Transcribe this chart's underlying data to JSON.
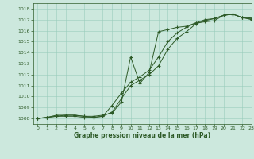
{
  "title": "Graphe pression niveau de la mer (hPa)",
  "bg_color": "#cce8dd",
  "grid_color": "#99ccbb",
  "line_color": "#2d5a27",
  "xlim": [
    -0.5,
    23
  ],
  "ylim": [
    1007.5,
    1018.5
  ],
  "yticks": [
    1008,
    1009,
    1010,
    1011,
    1012,
    1013,
    1014,
    1015,
    1016,
    1017,
    1018
  ],
  "xticks": [
    0,
    1,
    2,
    3,
    4,
    5,
    6,
    7,
    8,
    9,
    10,
    11,
    12,
    13,
    14,
    15,
    16,
    17,
    18,
    19,
    20,
    21,
    22,
    23
  ],
  "line1_x": [
    0,
    1,
    2,
    3,
    4,
    5,
    6,
    7,
    8,
    9,
    10,
    11,
    12,
    13,
    14,
    15,
    16,
    17,
    18,
    19,
    20,
    21,
    22,
    23
  ],
  "line1_y": [
    1008.0,
    1008.1,
    1008.3,
    1008.3,
    1008.3,
    1008.2,
    1008.2,
    1008.3,
    1008.5,
    1009.5,
    1013.6,
    1011.2,
    1012.2,
    1015.9,
    1016.1,
    1016.3,
    1016.4,
    1016.7,
    1016.8,
    1016.9,
    1017.4,
    1017.5,
    1017.2,
    1017.15
  ],
  "line2_x": [
    0,
    1,
    2,
    3,
    4,
    5,
    6,
    7,
    8,
    9,
    10,
    11,
    12,
    13,
    14,
    15,
    16,
    17,
    18,
    19,
    20,
    21,
    22,
    23
  ],
  "line2_y": [
    1008.0,
    1008.1,
    1008.2,
    1008.2,
    1008.2,
    1008.1,
    1008.1,
    1008.2,
    1008.6,
    1009.8,
    1011.0,
    1011.5,
    1012.0,
    1012.8,
    1014.3,
    1015.3,
    1015.9,
    1016.6,
    1016.9,
    1017.1,
    1017.4,
    1017.5,
    1017.2,
    1017.0
  ],
  "line3_x": [
    0,
    1,
    2,
    3,
    4,
    5,
    6,
    7,
    8,
    9,
    10,
    11,
    12,
    13,
    14,
    15,
    16,
    17,
    18,
    19,
    20,
    21,
    22,
    23
  ],
  "line3_y": [
    1008.0,
    1008.1,
    1008.2,
    1008.3,
    1008.3,
    1008.2,
    1008.1,
    1008.2,
    1009.2,
    1010.3,
    1011.3,
    1011.8,
    1012.4,
    1013.6,
    1015.0,
    1015.8,
    1016.3,
    1016.7,
    1017.0,
    1017.1,
    1017.4,
    1017.5,
    1017.2,
    1017.05
  ]
}
